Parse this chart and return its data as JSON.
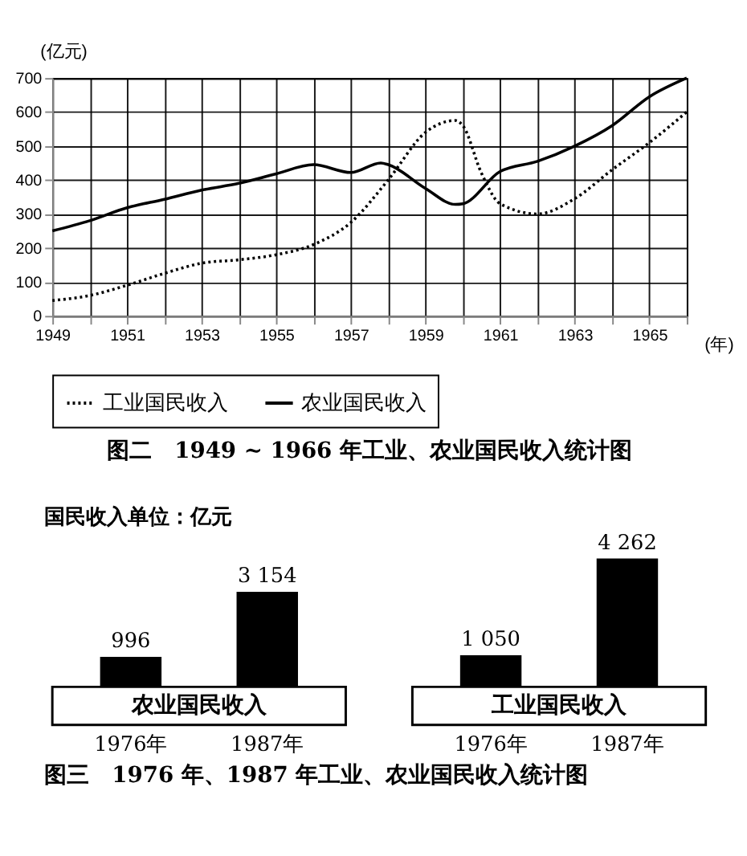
{
  "chart_data": [
    {
      "type": "line",
      "title": "图二　1949 ~ 1966 年工业、农业国民收入统计图",
      "xlabel": "(年)",
      "ylabel": "(亿元)",
      "xlim": [
        1949,
        1966
      ],
      "ylim": [
        0,
        700
      ],
      "xticks": [
        1949,
        {
          "value": 1950,
          "label": null
        },
        1951,
        {
          "value": 1952,
          "label": null
        },
        1953,
        {
          "value": 1954,
          "label": null
        },
        1955,
        {
          "value": 1956,
          "label": null
        },
        1957,
        {
          "value": 1958,
          "label": null
        },
        1959,
        {
          "value": 1960,
          "label": null
        },
        1961,
        {
          "value": 1962,
          "label": null
        },
        1963,
        {
          "value": 1964,
          "label": null
        },
        1965,
        {
          "value": 1966,
          "label": null
        }
      ],
      "yticks": [
        0,
        100,
        200,
        300,
        400,
        500,
        600,
        700
      ],
      "grid": true,
      "legend": "bottom",
      "series": [
        {
          "name": "工业国民收入",
          "color": "#000000",
          "line_style": "dotted",
          "x": [
            1949,
            1950,
            1951,
            1952,
            1953,
            1954,
            1955,
            1956,
            1957,
            1958,
            1959,
            1959.8,
            1960,
            1960.5,
            1961,
            1962,
            1963,
            1964,
            1965,
            1966
          ],
          "values": [
            45,
            60,
            90,
            125,
            155,
            165,
            180,
            210,
            275,
            400,
            540,
            575,
            560,
            420,
            330,
            300,
            345,
            430,
            510,
            600
          ]
        },
        {
          "name": "农业国民收入",
          "color": "#000000",
          "line_style": "solid",
          "x": [
            1949,
            1950,
            1951,
            1952,
            1953,
            1954,
            1955,
            1956,
            1957,
            1957.8,
            1958,
            1959,
            1959.8,
            1960,
            1961,
            1962,
            1963,
            1964,
            1965,
            1966
          ],
          "values": [
            250,
            280,
            318,
            343,
            370,
            390,
            418,
            445,
            422,
            450,
            445,
            375,
            328,
            330,
            425,
            455,
            500,
            560,
            645,
            700
          ]
        }
      ]
    },
    {
      "type": "bar",
      "categories": [
        "1976年",
        "1987年"
      ],
      "values": [
        996,
        3154
      ],
      "value_labels": [
        "996",
        "3 154"
      ],
      "color": "#000000",
      "xlabel": "农业国民收入",
      "annotations": [
        "国民收入单位：亿元"
      ]
    },
    {
      "type": "bar",
      "categories": [
        "1976年",
        "1987年"
      ],
      "values": [
        1050,
        4262
      ],
      "value_labels": [
        "1 050",
        "4 262"
      ],
      "color": "#000000",
      "xlabel": "工业国民收入",
      "annotations": [
        "图三　1976 年、1987 年工业、农业国民收入统计图"
      ]
    }
  ]
}
